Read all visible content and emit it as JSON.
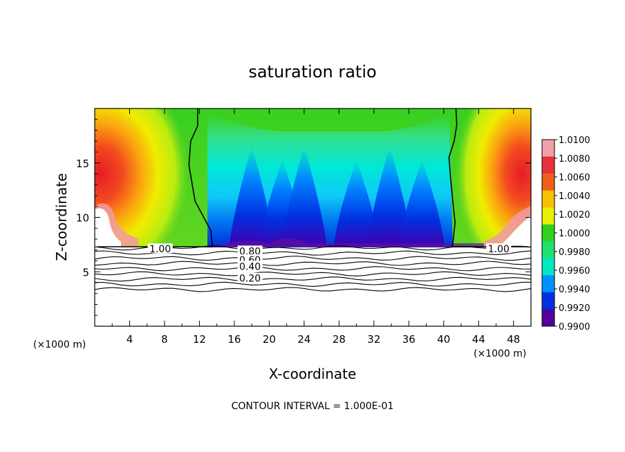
{
  "chart_data": {
    "type": "heatmap",
    "title": "saturation ratio",
    "xlabel": "X-coordinate",
    "ylabel": "Z-coordinate",
    "x_unit_left": "(×1000 m)",
    "x_unit_right": "(×1000 m)",
    "footer": "CONTOUR INTERVAL = 1.000E-01",
    "xlim": [
      0,
      50
    ],
    "ylim": [
      0,
      20
    ],
    "x_ticks": [
      4,
      8,
      12,
      16,
      20,
      24,
      28,
      32,
      36,
      40,
      44,
      48
    ],
    "x_tick_labels": [
      "4",
      "8",
      "12",
      "16",
      "20",
      "24",
      "28",
      "32",
      "36",
      "40",
      "44",
      "48"
    ],
    "y_ticks": [
      5,
      10,
      15
    ],
    "y_tick_labels": [
      "5",
      "10",
      "15"
    ],
    "colorbar": {
      "min": 0.99,
      "max": 1.01,
      "labels": [
        "1.0100",
        "1.0080",
        "1.0060",
        "1.0040",
        "1.0020",
        "1.0000",
        "0.9980",
        "0.9960",
        "0.9940",
        "0.9920",
        "0.9900"
      ],
      "colors": [
        "#f0a0a8",
        "#e8303a",
        "#f06018",
        "#f8c000",
        "#e8f000",
        "#30d020",
        "#20e070",
        "#00e8c0",
        "#0090ff",
        "#0030e0",
        "#5000a0"
      ]
    },
    "contour_levels": [
      0.1,
      0.2,
      0.3,
      0.4,
      0.5,
      0.6,
      0.7,
      0.8,
      0.9,
      1.0
    ],
    "contour_labels": [
      {
        "text": "1.00",
        "x": 7.5,
        "z": 7.1
      },
      {
        "text": "0.80",
        "x": 17.8,
        "z": 6.9
      },
      {
        "text": "0.60",
        "x": 17.8,
        "z": 6.1
      },
      {
        "text": "0.40",
        "x": 17.8,
        "z": 5.5
      },
      {
        "text": "0.20",
        "x": 17.8,
        "z": 4.4
      },
      {
        "text": "1.00",
        "x": 46.3,
        "z": 7.1
      }
    ],
    "isoline_1_00": [
      {
        "side": "left",
        "x": [
          0.3,
          13.5,
          13.3,
          11.5,
          10.8,
          11.0,
          11.8,
          11.8
        ],
        "z": [
          7.3,
          7.3,
          8.8,
          11.5,
          14.8,
          17.0,
          18.4,
          20
        ]
      },
      {
        "side": "right",
        "x": [
          41.0,
          41.3,
          41.0,
          40.8,
          40.6,
          41.2,
          41.5,
          41.4,
          49.7
        ],
        "z": [
          7.3,
          9.5,
          11.8,
          13.5,
          15.5,
          17.0,
          18.5,
          20,
          7.3
        ]
      }
    ]
  }
}
